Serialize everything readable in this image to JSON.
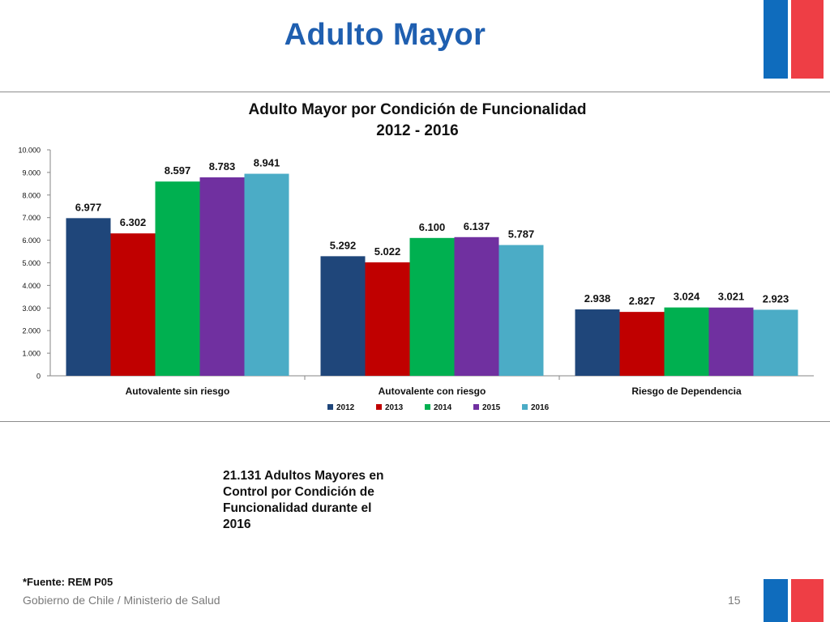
{
  "slide": {
    "title": "Adulto Mayor",
    "note": "21.131 Adultos Mayores en Control por Condición de Funcionalidad durante el 2016",
    "source": "*Fuente: REM P05",
    "footer": "Gobierno de Chile / Ministerio de Salud",
    "page_number": "15"
  },
  "colors": {
    "title": "#1f5fb0",
    "flag_blue": "#0f6cbd",
    "flag_red": "#ee3e45"
  },
  "chart_data": {
    "type": "bar",
    "title": "Adulto Mayor por Condición de Funcionalidad",
    "subtitle": "2012 - 2016",
    "categories": [
      "Autovalente sin riesgo",
      "Autovalente con riesgo",
      "Riesgo de Dependencia"
    ],
    "series": [
      {
        "name": "2012",
        "color": "#1f467a",
        "values": [
          6977,
          5292,
          2938
        ],
        "labels": [
          "6.977",
          "5.292",
          "2.938"
        ]
      },
      {
        "name": "2013",
        "color": "#c00000",
        "values": [
          6302,
          5022,
          2827
        ],
        "labels": [
          "6.302",
          "5.022",
          "2.827"
        ]
      },
      {
        "name": "2014",
        "color": "#00b050",
        "values": [
          8597,
          6100,
          3024
        ],
        "labels": [
          "8.597",
          "6.100",
          "3.024"
        ]
      },
      {
        "name": "2015",
        "color": "#7030a0",
        "values": [
          8783,
          6137,
          3021
        ],
        "labels": [
          "8.783",
          "6.137",
          "3.021"
        ]
      },
      {
        "name": "2016",
        "color": "#4bacc6",
        "values": [
          8941,
          5787,
          2923
        ],
        "labels": [
          "8.941",
          "5.787",
          "2.923"
        ]
      }
    ],
    "yticks": [
      {
        "value": 0,
        "label": "0"
      },
      {
        "value": 1000,
        "label": "1.000"
      },
      {
        "value": 2000,
        "label": "2.000"
      },
      {
        "value": 3000,
        "label": "3.000"
      },
      {
        "value": 4000,
        "label": "4.000"
      },
      {
        "value": 5000,
        "label": "5.000"
      },
      {
        "value": 6000,
        "label": "6.000"
      },
      {
        "value": 7000,
        "label": "7.000"
      },
      {
        "value": 8000,
        "label": "8.000"
      },
      {
        "value": 9000,
        "label": "9.000"
      },
      {
        "value": 10000,
        "label": "10.000"
      }
    ],
    "ylim": [
      0,
      10000
    ],
    "grid": false,
    "legend_position": "bottom"
  }
}
